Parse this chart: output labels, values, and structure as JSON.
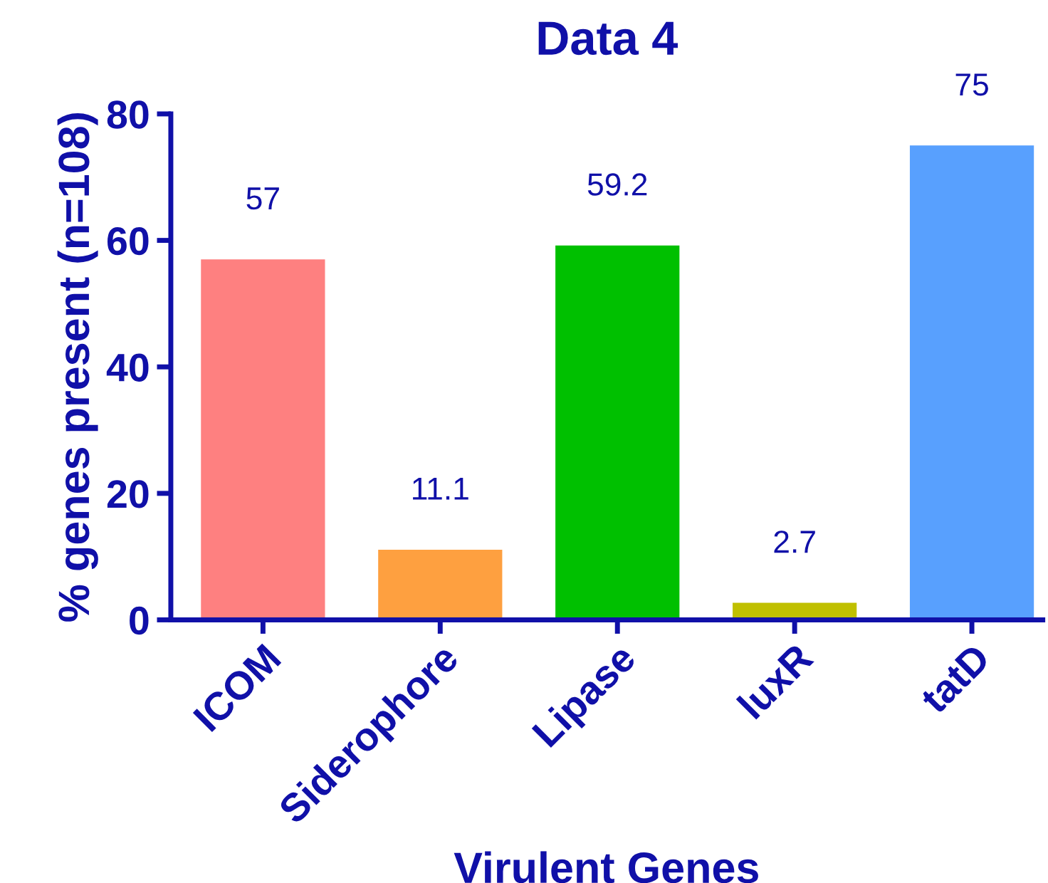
{
  "chart_data": {
    "type": "bar",
    "title": "Data 4",
    "xlabel": "Virulent Genes",
    "ylabel": "% genes present (n=108)",
    "categories": [
      "ICOM",
      "Siderophore",
      "Lipase",
      "luxR",
      "tatD"
    ],
    "values": [
      57,
      11.1,
      59.2,
      2.7,
      75
    ],
    "colors": [
      "#fe8080",
      "#fea040",
      "#00c000",
      "#c0c000",
      "#58a0fe"
    ],
    "ylim": [
      0,
      80
    ],
    "yticks": [
      0,
      20,
      40,
      60,
      80
    ],
    "data_labels": true,
    "grid": false,
    "legend": false
  }
}
